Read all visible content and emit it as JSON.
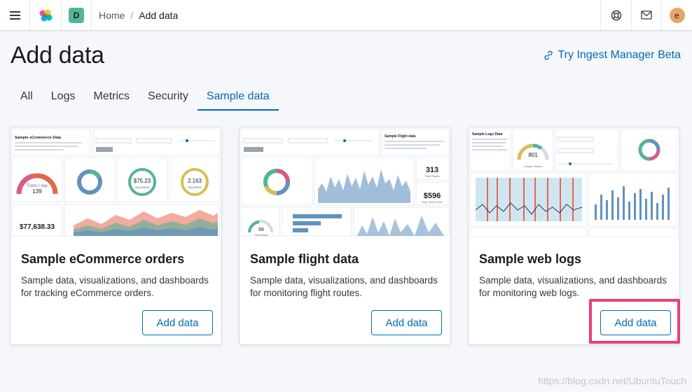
{
  "header": {
    "breadcrumbs": {
      "home": "Home",
      "current": "Add data"
    },
    "space_initial": "D",
    "user_initial": "e"
  },
  "page": {
    "title": "Add data",
    "ingest_link": "Try Ingest Manager Beta"
  },
  "tabs": [
    {
      "label": "All"
    },
    {
      "label": "Logs"
    },
    {
      "label": "Metrics"
    },
    {
      "label": "Security"
    },
    {
      "label": "Sample data",
      "active": true
    }
  ],
  "cards": [
    {
      "title": "Sample eCommerce orders",
      "description": "Sample data, visualizations, and dashboards for tracking eCommerce orders.",
      "button": "Add data",
      "preview": {
        "heading": "Sample eCommerce Data",
        "gauge_value": "139",
        "gauge_label": "Trans / day",
        "avg_price": "$75.23",
        "avg_label": "avg spend",
        "items": "2.163",
        "items_label": "avg items",
        "total_revenue": "$77,638.33"
      }
    },
    {
      "title": "Sample flight data",
      "description": "Sample data, visualizations, and dashboards for monitoring flight routes.",
      "button": "Add data",
      "preview": {
        "heading": "Sample Flight data",
        "total_flights": "313",
        "total_flights_label": "Total Flights",
        "avg_ticket": "$596",
        "avg_ticket_label": "Avg. Ticket Price",
        "delays": "68",
        "delays_label": "Total Delays"
      }
    },
    {
      "title": "Sample web logs",
      "description": "Sample data, visualizations, and dashboards for monitoring web logs.",
      "button": "Add data",
      "preview": {
        "heading": "Sample Logs Data",
        "gauge_value": "801",
        "gauge_label": "Unique Visitors"
      }
    }
  ],
  "watermark": "https://blog.csdn.net/UbuntuTouch",
  "colors": {
    "accent": "#006bb8",
    "highlight": "#e83e7b",
    "space_badge": "#54b399",
    "avatar": "#e7a665"
  },
  "icons": [
    "menu-icon",
    "kibana-logo-icon",
    "help-icon",
    "mail-icon",
    "link-icon"
  ]
}
